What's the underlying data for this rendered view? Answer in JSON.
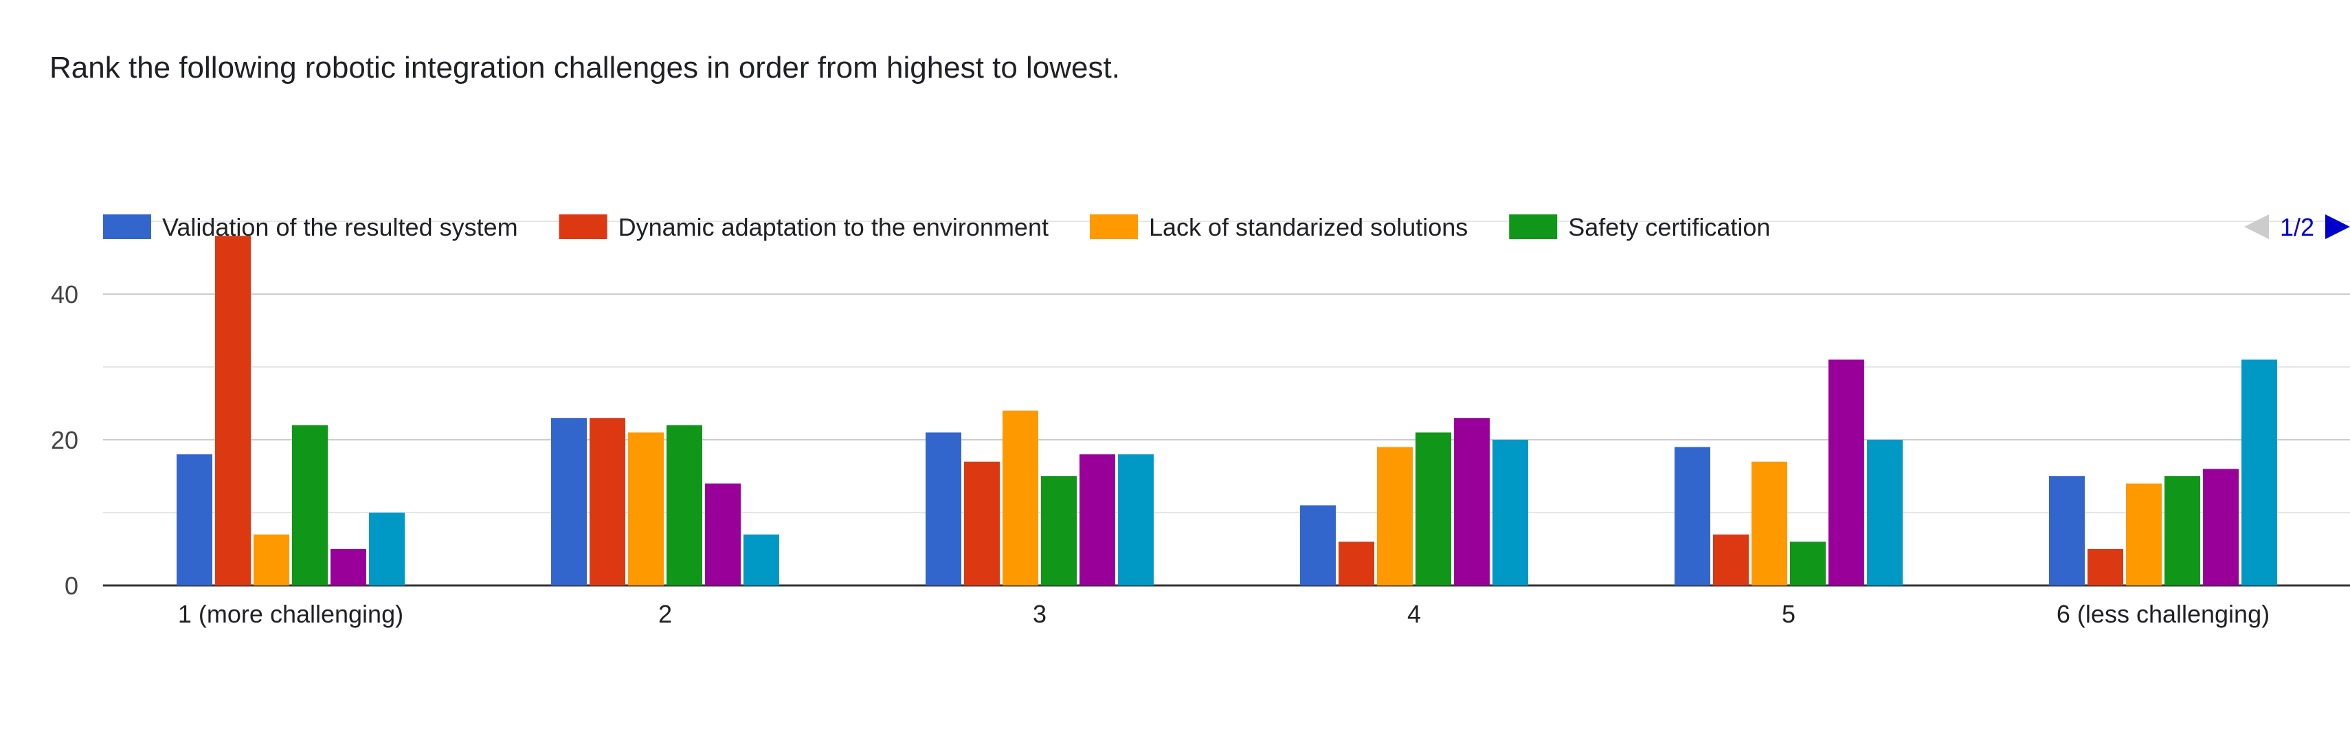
{
  "question": {
    "title": "Rank the following robotic integration challenges in order from highest to lowest."
  },
  "legend": {
    "pager": "1/2",
    "prev_icon": "triangle-left-icon",
    "next_icon": "triangle-right-icon"
  },
  "colors": [
    "#3366cc",
    "#dc3912",
    "#ff9900",
    "#109618",
    "#990099",
    "#0099c6"
  ],
  "chart_data": {
    "type": "bar",
    "categories": [
      "1 (more challenging)",
      "2",
      "3",
      "4",
      "5",
      "6 (less challenging)"
    ],
    "series": [
      {
        "name": "Validation of the resulted system",
        "values": [
          18,
          23,
          21,
          11,
          19,
          15
        ]
      },
      {
        "name": "Dynamic adaptation to the environment",
        "values": [
          48,
          23,
          17,
          6,
          7,
          5
        ]
      },
      {
        "name": "Lack of standarized solutions",
        "values": [
          7,
          21,
          24,
          19,
          17,
          14
        ]
      },
      {
        "name": "Safety certification",
        "values": [
          22,
          22,
          15,
          21,
          6,
          15
        ]
      },
      {
        "values": [
          5,
          14,
          18,
          23,
          31,
          16
        ]
      },
      {
        "values": [
          10,
          7,
          18,
          20,
          20,
          31
        ]
      }
    ],
    "yticks": [
      "0",
      "20",
      "40"
    ],
    "ylim": [
      0,
      50
    ],
    "grid": true,
    "legend_position": "top"
  }
}
